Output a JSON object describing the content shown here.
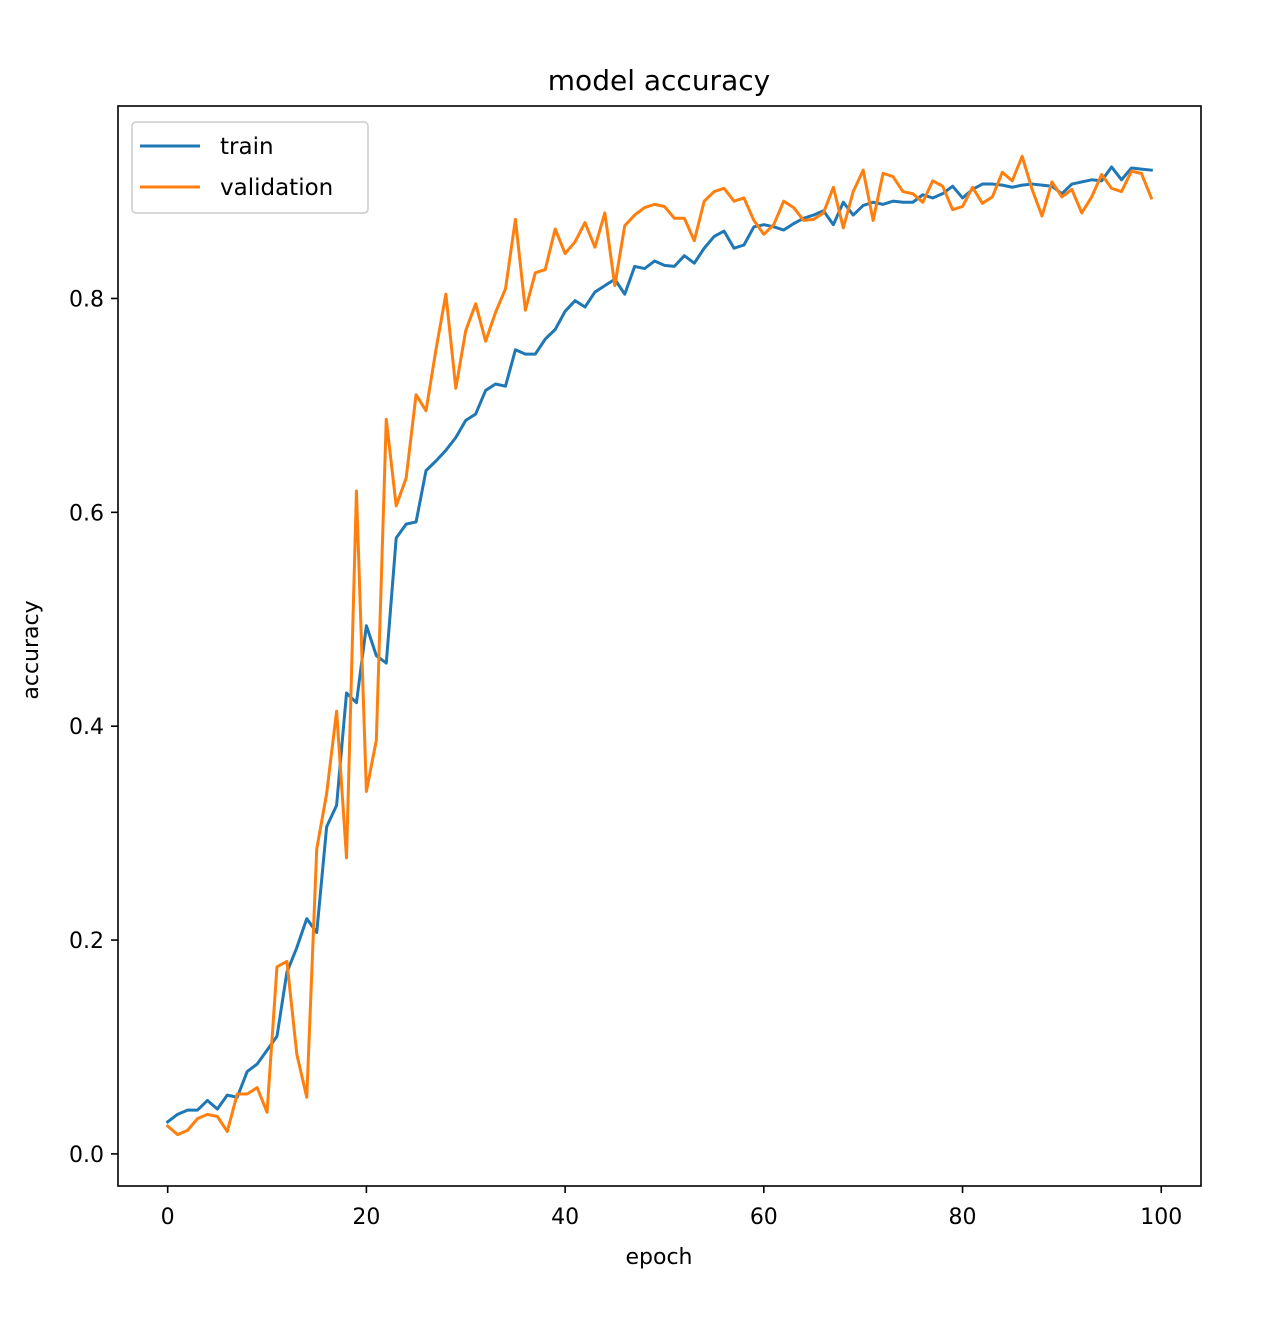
{
  "chart_data": {
    "type": "line",
    "title": "model accuracy",
    "xlabel": "epoch",
    "ylabel": "accuracy",
    "xlim": [
      -5,
      104
    ],
    "ylim": [
      -0.03,
      0.98
    ],
    "xticks": [
      0,
      20,
      40,
      60,
      80,
      100
    ],
    "yticks": [
      0.0,
      0.2,
      0.4,
      0.6,
      0.8
    ],
    "xtick_labels": [
      "0",
      "20",
      "40",
      "60",
      "80",
      "100"
    ],
    "ytick_labels": [
      "0.0",
      "0.2",
      "0.4",
      "0.6",
      "0.8"
    ],
    "legend": {
      "position": "upper-left"
    },
    "grid": false,
    "series": [
      {
        "name": "train",
        "color": "#1f77b4",
        "x": [
          0,
          1,
          2,
          3,
          4,
          5,
          6,
          7,
          8,
          9,
          10,
          11,
          12,
          13,
          14,
          15,
          16,
          17,
          18,
          19,
          20,
          21,
          22,
          23,
          24,
          25,
          26,
          27,
          28,
          29,
          30,
          31,
          32,
          33,
          34,
          35,
          36,
          37,
          38,
          39,
          40,
          41,
          42,
          43,
          44,
          45,
          46,
          47,
          48,
          49,
          50,
          51,
          52,
          53,
          54,
          55,
          56,
          57,
          58,
          59,
          60,
          61,
          62,
          63,
          64,
          65,
          66,
          67,
          68,
          69,
          70,
          71,
          72,
          73,
          74,
          75,
          76,
          77,
          78,
          79,
          80,
          81,
          82,
          83,
          84,
          85,
          86,
          87,
          88,
          89,
          90,
          91,
          92,
          93,
          94,
          95,
          96,
          97,
          98,
          99
        ],
        "values": [
          0.03,
          0.037,
          0.041,
          0.041,
          0.05,
          0.042,
          0.055,
          0.053,
          0.077,
          0.084,
          0.097,
          0.11,
          0.17,
          0.193,
          0.22,
          0.207,
          0.306,
          0.326,
          0.431,
          0.422,
          0.494,
          0.466,
          0.459,
          0.576,
          0.589,
          0.591,
          0.639,
          0.648,
          0.658,
          0.67,
          0.686,
          0.692,
          0.714,
          0.72,
          0.718,
          0.752,
          0.748,
          0.748,
          0.762,
          0.771,
          0.788,
          0.798,
          0.792,
          0.806,
          0.812,
          0.818,
          0.804,
          0.83,
          0.828,
          0.835,
          0.831,
          0.83,
          0.84,
          0.833,
          0.847,
          0.858,
          0.863,
          0.847,
          0.85,
          0.867,
          0.869,
          0.867,
          0.864,
          0.87,
          0.875,
          0.878,
          0.882,
          0.869,
          0.89,
          0.878,
          0.887,
          0.89,
          0.888,
          0.891,
          0.89,
          0.89,
          0.897,
          0.894,
          0.898,
          0.905,
          0.894,
          0.902,
          0.907,
          0.907,
          0.906,
          0.904,
          0.906,
          0.907,
          0.906,
          0.905,
          0.898,
          0.907,
          0.909,
          0.911,
          0.91,
          0.923,
          0.911,
          0.922,
          0.921,
          0.92
        ]
      },
      {
        "name": "validation",
        "color": "#ff7f0e",
        "x": [
          0,
          1,
          2,
          3,
          4,
          5,
          6,
          7,
          8,
          9,
          10,
          11,
          12,
          13,
          14,
          15,
          16,
          17,
          18,
          19,
          20,
          21,
          22,
          23,
          24,
          25,
          26,
          27,
          28,
          29,
          30,
          31,
          32,
          33,
          34,
          35,
          36,
          37,
          38,
          39,
          40,
          41,
          42,
          43,
          44,
          45,
          46,
          47,
          48,
          49,
          50,
          51,
          52,
          53,
          54,
          55,
          56,
          57,
          58,
          59,
          60,
          61,
          62,
          63,
          64,
          65,
          66,
          67,
          68,
          69,
          70,
          71,
          72,
          73,
          74,
          75,
          76,
          77,
          78,
          79,
          80,
          81,
          82,
          83,
          84,
          85,
          86,
          87,
          88,
          89,
          90,
          91,
          92,
          93,
          94,
          95,
          96,
          97,
          98,
          99
        ],
        "values": [
          0.026,
          0.018,
          0.022,
          0.033,
          0.037,
          0.035,
          0.021,
          0.056,
          0.056,
          0.062,
          0.039,
          0.175,
          0.18,
          0.093,
          0.053,
          0.285,
          0.337,
          0.414,
          0.277,
          0.62,
          0.339,
          0.387,
          0.687,
          0.606,
          0.632,
          0.71,
          0.695,
          0.752,
          0.804,
          0.716,
          0.77,
          0.795,
          0.76,
          0.787,
          0.809,
          0.874,
          0.789,
          0.824,
          0.827,
          0.865,
          0.842,
          0.853,
          0.871,
          0.848,
          0.88,
          0.812,
          0.868,
          0.878,
          0.885,
          0.888,
          0.886,
          0.875,
          0.875,
          0.854,
          0.891,
          0.9,
          0.903,
          0.891,
          0.894,
          0.873,
          0.86,
          0.869,
          0.891,
          0.885,
          0.873,
          0.874,
          0.88,
          0.904,
          0.866,
          0.9,
          0.92,
          0.873,
          0.917,
          0.914,
          0.9,
          0.898,
          0.89,
          0.91,
          0.905,
          0.883,
          0.886,
          0.904,
          0.889,
          0.895,
          0.918,
          0.91,
          0.933,
          0.902,
          0.877,
          0.909,
          0.895,
          0.902,
          0.88,
          0.895,
          0.916,
          0.903,
          0.9,
          0.919,
          0.917,
          0.894
        ]
      }
    ]
  }
}
